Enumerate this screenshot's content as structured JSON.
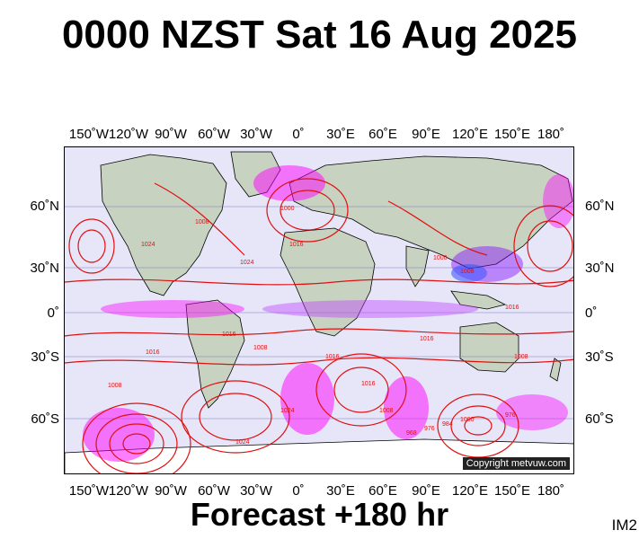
{
  "title": "0000 NZST Sat 16 Aug 2025",
  "footer": "Forecast +180 hr",
  "corner_label": "IM2",
  "copyright": "Copyright metvuw.com",
  "lon_labels_top": [
    "150˚W",
    "120˚W",
    "90˚W",
    "60˚W",
    "30˚W",
    "0˚",
    "30˚E",
    "60˚E",
    "90˚E",
    "120˚E",
    "150˚E",
    "180˚"
  ],
  "lon_labels_bottom": [
    "150˚W",
    "120˚W",
    "90˚W",
    "60˚W",
    "30˚W",
    "0˚",
    "30˚E",
    "60˚E",
    "90˚E",
    "120˚E",
    "150˚E",
    "180˚"
  ],
  "lat_labels_left": [
    "60˚N",
    "30˚N",
    "0˚",
    "30˚S",
    "60˚S"
  ],
  "lat_labels_right": [
    "60˚N",
    "30˚N",
    "0˚",
    "30˚S",
    "60˚S"
  ],
  "isobar_labels": [
    "1008",
    "1008",
    "1016",
    "1024",
    "1008",
    "1000",
    "1016",
    "1000",
    "1016",
    "1024",
    "1016",
    "1008",
    "1016",
    "1016",
    "1024",
    "1016",
    "1024",
    "1008",
    "1008",
    "968",
    "976",
    "984",
    "1000",
    "976"
  ],
  "colors": {
    "ocean": "#e6e6f8",
    "land": "#c8d2c0",
    "isobar": "#e01010",
    "rain_magenta": "#ff00ff",
    "rain_purple": "#8000ff",
    "rain_blue": "#2040ff"
  }
}
